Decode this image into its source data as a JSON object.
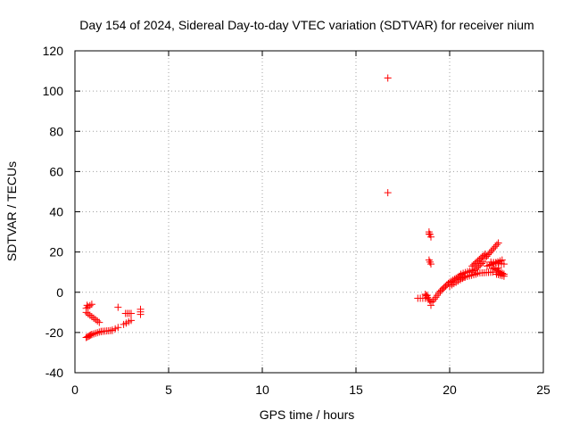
{
  "chart_data": {
    "type": "scatter",
    "title": "Day 154 of 2024, Sidereal Day-to-day VTEC variation (SDTVAR) for receiver nium",
    "xlabel": "GPS time / hours",
    "ylabel": "SDTVAR / TECUs",
    "xlim": [
      0,
      25
    ],
    "ylim": [
      -40,
      120
    ],
    "xticks": [
      0,
      5,
      10,
      15,
      20,
      25
    ],
    "yticks": [
      -40,
      -20,
      0,
      20,
      40,
      60,
      80,
      100,
      120
    ],
    "grid": true,
    "marker": "+",
    "series": [
      {
        "name": "SDTVAR",
        "color": "#ff0000",
        "segments": [
          {
            "from": [
              0.6,
              -22.5
            ],
            "to": [
              0.9,
              -21.0
            ],
            "n": 6
          },
          {
            "from": [
              0.9,
              -21.0
            ],
            "to": [
              1.4,
              -19.5
            ],
            "n": 6
          },
          {
            "from": [
              1.4,
              -19.5
            ],
            "to": [
              2.0,
              -19.0
            ],
            "n": 7
          },
          {
            "from": [
              2.0,
              -18.8
            ],
            "to": [
              2.3,
              -17.5
            ],
            "n": 3
          },
          {
            "from": [
              0.6,
              -8.0
            ],
            "to": [
              0.9,
              -6.0
            ],
            "n": 4
          },
          {
            "from": [
              0.6,
              -10.0
            ],
            "to": [
              1.3,
              -15.0
            ],
            "n": 8
          },
          {
            "from": [
              2.6,
              -16.0
            ],
            "to": [
              3.0,
              -14.0
            ],
            "n": 4
          },
          {
            "from": [
              2.7,
              -10.5
            ],
            "to": [
              3.0,
              -10.5
            ],
            "n": 4
          },
          {
            "from": [
              3.5,
              -11.0
            ],
            "to": [
              3.5,
              -8.5
            ],
            "n": 3
          },
          {
            "from": [
              18.3,
              -3.0
            ],
            "to": [
              18.7,
              -3.0
            ],
            "n": 4
          },
          {
            "from": [
              18.7,
              -1.0
            ],
            "to": [
              19.0,
              -5.0
            ],
            "n": 6
          },
          {
            "from": [
              19.1,
              -4.5
            ],
            "to": [
              19.5,
              0.5
            ],
            "n": 6
          },
          {
            "from": [
              19.5,
              0.5
            ],
            "to": [
              20.0,
              5.0
            ],
            "n": 8
          },
          {
            "from": [
              20.0,
              5.0
            ],
            "to": [
              20.6,
              8.5
            ],
            "n": 8
          },
          {
            "from": [
              20.0,
              3.0
            ],
            "to": [
              20.8,
              7.5
            ],
            "n": 8
          },
          {
            "from": [
              20.6,
              9.0
            ],
            "to": [
              21.2,
              11.0
            ],
            "n": 6
          },
          {
            "from": [
              20.6,
              7.0
            ],
            "to": [
              21.4,
              9.0
            ],
            "n": 8
          },
          {
            "from": [
              21.2,
              13.0
            ],
            "to": [
              21.9,
              19.0
            ],
            "n": 10
          },
          {
            "from": [
              21.2,
              10.0
            ],
            "to": [
              21.8,
              15.0
            ],
            "n": 8
          },
          {
            "from": [
              21.5,
              9.5
            ],
            "to": [
              22.3,
              10.0
            ],
            "n": 8
          },
          {
            "from": [
              21.9,
              17.0
            ],
            "to": [
              22.6,
              24.5
            ],
            "n": 10
          },
          {
            "from": [
              22.0,
              13.0
            ],
            "to": [
              22.8,
              16.0
            ],
            "n": 8
          },
          {
            "from": [
              22.3,
              12.0
            ],
            "to": [
              22.9,
              9.0
            ],
            "n": 8
          },
          {
            "from": [
              22.5,
              9.0
            ],
            "to": [
              22.9,
              8.0
            ],
            "n": 5
          },
          {
            "from": [
              22.2,
              15.0
            ],
            "to": [
              22.9,
              14.0
            ],
            "n": 6
          },
          {
            "from": [
              18.9,
              30.0
            ],
            "to": [
              19.0,
              27.5
            ],
            "n": 3
          },
          {
            "from": [
              18.9,
              16.0
            ],
            "to": [
              19.0,
              14.0
            ],
            "n": 3
          }
        ],
        "points": [
          [
            2.3,
            -7.5
          ],
          [
            0.65,
            -6.5
          ],
          [
            16.7,
            106.5
          ],
          [
            16.7,
            49.5
          ],
          [
            18.9,
            29.0
          ],
          [
            19.0,
            -6.5
          ],
          [
            18.8,
            -1.5
          ],
          [
            22.6,
            12.0
          ]
        ]
      }
    ]
  }
}
